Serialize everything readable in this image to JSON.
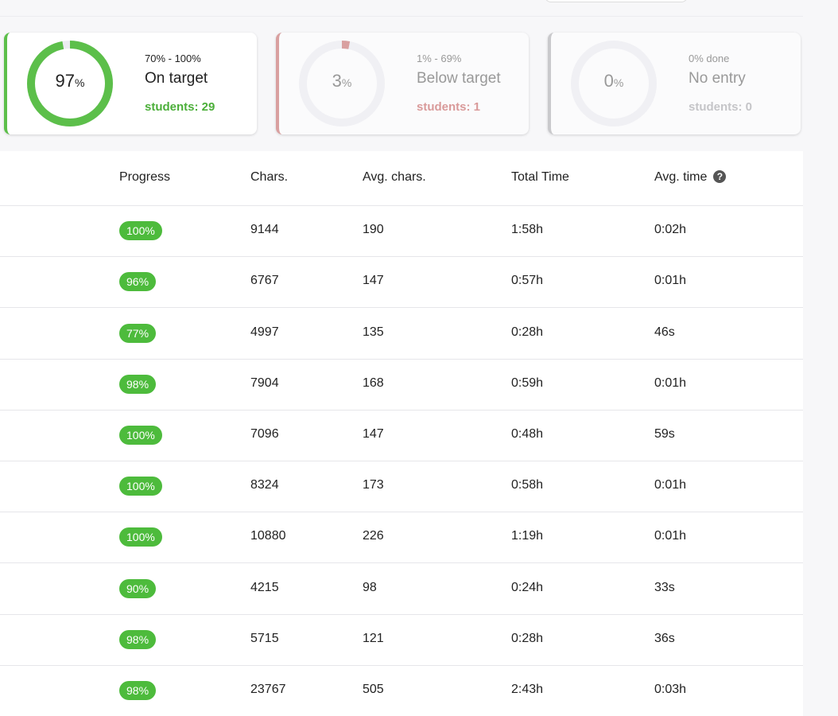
{
  "cards": [
    {
      "percent": 97,
      "unit": "%",
      "range": "70% - 100%",
      "label": "On target",
      "students": "students: 29"
    },
    {
      "percent": 3,
      "unit": "%",
      "range": "1% - 69%",
      "label": "Below target",
      "students": "students: 1"
    },
    {
      "percent": 0,
      "unit": "%",
      "range": "0% done",
      "label": "No entry",
      "students": "students: 0"
    }
  ],
  "table": {
    "headers": [
      "Progress",
      "Chars.",
      "Avg. chars.",
      "Total Time",
      "Avg. time"
    ],
    "rows": [
      [
        "100%",
        9144,
        190,
        "1:58h",
        "0:02h"
      ],
      [
        "96%",
        6767,
        147,
        "0:57h",
        "0:01h"
      ],
      [
        "77%",
        4997,
        135,
        "0:28h",
        "46s"
      ],
      [
        "98%",
        7904,
        168,
        "0:59h",
        "0:01h"
      ],
      [
        "100%",
        7096,
        147,
        "0:48h",
        "59s"
      ],
      [
        "100%",
        8324,
        173,
        "0:58h",
        "0:01h"
      ],
      [
        "100%",
        10880,
        226,
        "1:19h",
        "0:01h"
      ],
      [
        "90%",
        4215,
        98,
        "0:24h",
        "33s"
      ],
      [
        "98%",
        5715,
        121,
        "0:28h",
        "36s"
      ],
      [
        "98%",
        23767,
        505,
        "2:43h",
        "0:03h"
      ]
    ]
  }
}
